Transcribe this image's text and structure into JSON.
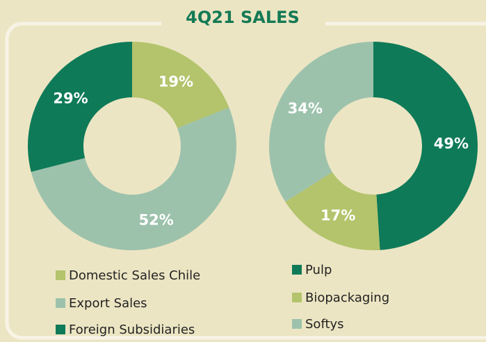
{
  "title": "4Q21 SALES",
  "chart_data": [
    {
      "type": "pie",
      "categories": [
        "Domestic Sales Chile",
        "Export Sales",
        "Foreign Subsidiaries"
      ],
      "values": [
        19,
        52,
        29
      ],
      "value_labels": [
        "19%",
        "52%",
        "29%"
      ],
      "colors": [
        "#b3c46c",
        "#9dc2ac",
        "#0e7a58"
      ]
    },
    {
      "type": "pie",
      "categories": [
        "Pulp",
        "Biopackaging",
        "Softys"
      ],
      "values": [
        49,
        17,
        34
      ],
      "value_labels": [
        "49%",
        "17%",
        "34%"
      ],
      "colors": [
        "#0e7a58",
        "#b3c46c",
        "#9dc2ac"
      ]
    }
  ]
}
